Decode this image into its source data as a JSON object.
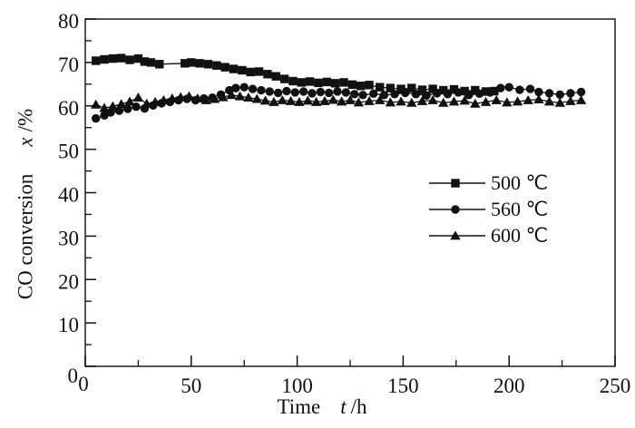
{
  "figure": {
    "background": "#ffffff",
    "ink_color": "#111111",
    "frame_color": "#2b2b2b"
  },
  "chart_data": {
    "type": "line",
    "title": "",
    "xlabel": {
      "prefix": "Time",
      "symbol": "t",
      "unit": "/h"
    },
    "ylabel": {
      "prefix": "CO conversion",
      "symbol": "x",
      "unit": "/%"
    },
    "xlim": [
      0,
      250
    ],
    "ylim": [
      0,
      80
    ],
    "x_major_ticks": [
      0,
      50,
      100,
      150,
      200,
      250
    ],
    "x_minor_step": 25,
    "y_major_ticks": [
      0,
      10,
      20,
      30,
      40,
      50,
      60,
      70,
      80
    ],
    "y_minor_step": 5,
    "grid": false,
    "legend_position": "center-right",
    "series": [
      {
        "name": "500 ℃",
        "marker": "square",
        "color": "#111111",
        "points": [
          [
            5,
            70.4
          ],
          [
            9,
            70.7
          ],
          [
            13,
            70.9
          ],
          [
            17,
            71.0
          ],
          [
            21,
            70.6
          ],
          [
            25,
            70.9
          ],
          [
            28,
            70.2
          ],
          [
            31,
            70.0
          ],
          [
            35,
            69.6
          ],
          [
            47,
            69.8
          ],
          [
            50,
            70.0
          ],
          [
            54,
            69.8
          ],
          [
            58,
            69.6
          ],
          [
            62,
            69.3
          ],
          [
            66,
            68.9
          ],
          [
            70,
            68.5
          ],
          [
            74,
            68.2
          ],
          [
            78,
            67.8
          ],
          [
            82,
            67.9
          ],
          [
            86,
            67.3
          ],
          [
            90,
            66.8
          ],
          [
            94,
            66.2
          ],
          [
            98,
            65.7
          ],
          [
            102,
            65.4
          ],
          [
            106,
            65.6
          ],
          [
            110,
            65.3
          ],
          [
            114,
            65.5
          ],
          [
            118,
            65.2
          ],
          [
            122,
            65.4
          ],
          [
            126,
            64.9
          ],
          [
            130,
            64.6
          ],
          [
            134,
            64.8
          ],
          [
            139,
            64.3
          ],
          [
            144,
            64.1
          ],
          [
            149,
            63.9
          ],
          [
            154,
            64.1
          ],
          [
            159,
            63.7
          ],
          [
            164,
            63.9
          ],
          [
            169,
            63.6
          ],
          [
            174,
            63.8
          ],
          [
            179,
            63.4
          ],
          [
            184,
            63.6
          ],
          [
            189,
            63.3
          ],
          [
            193,
            63.4
          ]
        ]
      },
      {
        "name": "560 ℃",
        "marker": "circle",
        "color": "#111111",
        "points": [
          [
            5,
            57.1
          ],
          [
            9,
            57.8
          ],
          [
            12,
            58.5
          ],
          [
            16,
            58.9
          ],
          [
            20,
            59.3
          ],
          [
            24,
            59.8
          ],
          [
            28,
            59.4
          ],
          [
            32,
            60.1
          ],
          [
            36,
            60.6
          ],
          [
            40,
            60.9
          ],
          [
            44,
            61.3
          ],
          [
            48,
            61.6
          ],
          [
            52,
            61.3
          ],
          [
            56,
            61.7
          ],
          [
            60,
            61.9
          ],
          [
            64,
            62.6
          ],
          [
            68,
            63.6
          ],
          [
            71,
            64.1
          ],
          [
            75,
            64.3
          ],
          [
            79,
            63.9
          ],
          [
            83,
            63.6
          ],
          [
            87,
            63.3
          ],
          [
            91,
            63.0
          ],
          [
            95,
            63.4
          ],
          [
            99,
            63.1
          ],
          [
            103,
            63.3
          ],
          [
            107,
            62.9
          ],
          [
            111,
            63.2
          ],
          [
            115,
            63.0
          ],
          [
            119,
            63.3
          ],
          [
            123,
            63.1
          ],
          [
            127,
            62.7
          ],
          [
            131,
            62.5
          ],
          [
            136,
            62.8
          ],
          [
            141,
            62.5
          ],
          [
            146,
            62.7
          ],
          [
            151,
            63.0
          ],
          [
            156,
            62.7
          ],
          [
            161,
            62.4
          ],
          [
            166,
            62.9
          ],
          [
            171,
            62.7
          ],
          [
            176,
            63.1
          ],
          [
            181,
            62.5
          ],
          [
            186,
            62.8
          ],
          [
            191,
            63.1
          ],
          [
            196,
            64.1
          ],
          [
            200,
            64.3
          ],
          [
            205,
            63.7
          ],
          [
            210,
            63.9
          ],
          [
            214,
            63.2
          ],
          [
            219,
            62.9
          ],
          [
            224,
            62.6
          ],
          [
            229,
            62.9
          ],
          [
            234,
            63.2
          ]
        ]
      },
      {
        "name": "600 ℃",
        "marker": "triangle",
        "color": "#111111",
        "points": [
          [
            5,
            60.3
          ],
          [
            9,
            59.5
          ],
          [
            13,
            59.9
          ],
          [
            17,
            60.4
          ],
          [
            21,
            61.0
          ],
          [
            25,
            61.9
          ],
          [
            29,
            60.5
          ],
          [
            33,
            60.9
          ],
          [
            37,
            61.3
          ],
          [
            41,
            61.7
          ],
          [
            45,
            62.0
          ],
          [
            49,
            62.2
          ],
          [
            53,
            61.7
          ],
          [
            57,
            61.3
          ],
          [
            61,
            61.6
          ],
          [
            65,
            62.0
          ],
          [
            69,
            62.5
          ],
          [
            73,
            62.2
          ],
          [
            77,
            61.9
          ],
          [
            81,
            61.6
          ],
          [
            85,
            61.2
          ],
          [
            89,
            60.9
          ],
          [
            93,
            61.3
          ],
          [
            97,
            61.1
          ],
          [
            101,
            60.9
          ],
          [
            105,
            61.2
          ],
          [
            109,
            60.9
          ],
          [
            113,
            61.1
          ],
          [
            117,
            61.4
          ],
          [
            121,
            61.0
          ],
          [
            125,
            61.3
          ],
          [
            129,
            60.8
          ],
          [
            134,
            61.1
          ],
          [
            139,
            61.3
          ],
          [
            144,
            60.8
          ],
          [
            149,
            61.0
          ],
          [
            154,
            60.7
          ],
          [
            159,
            61.1
          ],
          [
            164,
            61.3
          ],
          [
            169,
            60.7
          ],
          [
            174,
            61.0
          ],
          [
            179,
            61.2
          ],
          [
            184,
            60.5
          ],
          [
            189,
            60.9
          ],
          [
            194,
            61.3
          ],
          [
            199,
            60.8
          ],
          [
            204,
            61.0
          ],
          [
            209,
            61.3
          ],
          [
            214,
            61.5
          ],
          [
            219,
            61.0
          ],
          [
            224,
            60.7
          ],
          [
            229,
            61.1
          ],
          [
            234,
            61.3
          ]
        ]
      }
    ]
  }
}
